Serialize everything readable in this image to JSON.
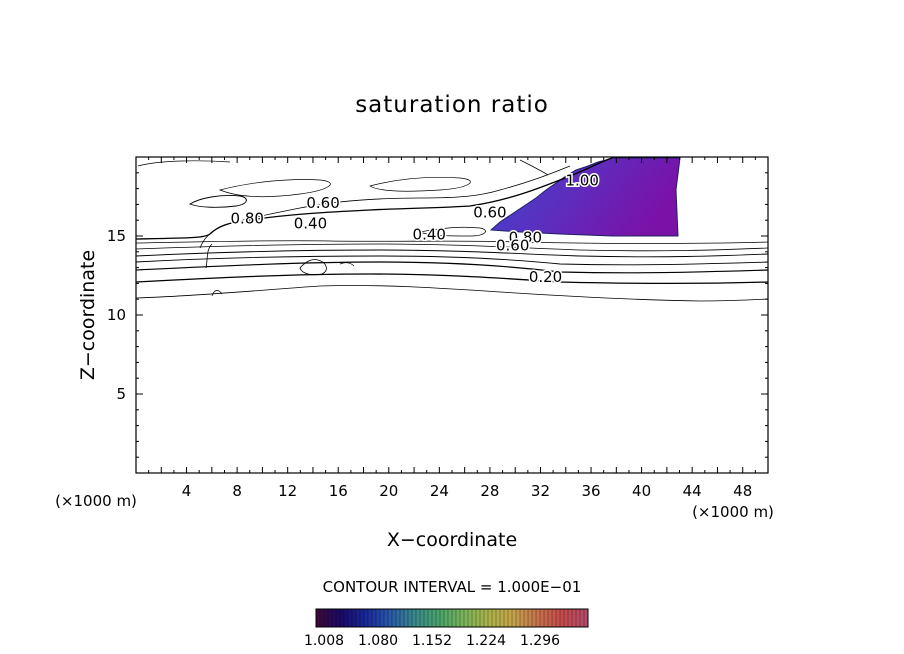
{
  "chart_data": {
    "type": "contour",
    "title": "saturation ratio",
    "xlabel": "X−coordinate",
    "ylabel": "Z−coordinate",
    "x_unit": "(×1000 m)",
    "x_unit_right": "(×1000 m)",
    "xlim": [
      0,
      50
    ],
    "ylim": [
      0,
      20
    ],
    "xticks": [
      4,
      8,
      12,
      16,
      20,
      24,
      28,
      32,
      36,
      40,
      44,
      48
    ],
    "yticks": [
      5,
      10,
      15
    ],
    "contour_labels": [
      {
        "text": "0.80",
        "x": 8.8,
        "y": 16.1
      },
      {
        "text": "0.60",
        "x": 14.8,
        "y": 17.1
      },
      {
        "text": "0.40",
        "x": 13.8,
        "y": 15.8
      },
      {
        "text": "0.40",
        "x": 23.2,
        "y": 15.1
      },
      {
        "text": "0.60",
        "x": 28.0,
        "y": 16.5
      },
      {
        "text": "0.80",
        "x": 30.8,
        "y": 14.9
      },
      {
        "text": "0.60",
        "x": 29.8,
        "y": 14.4
      },
      {
        "text": "0.20",
        "x": 32.4,
        "y": 12.4
      },
      {
        "text": "1.00",
        "x": 35.3,
        "y": 18.5
      }
    ],
    "contour_interval_text": "CONTOUR INTERVAL = 1.000E−01",
    "colorbar": {
      "tick_labels": [
        "1.008",
        "1.080",
        "1.152",
        "1.224",
        "1.296"
      ],
      "colors": [
        "#3a0a3a",
        "#1a0a6a",
        "#1a2a9a",
        "#2a5aaa",
        "#3a8a8a",
        "#4aa46a",
        "#7ab45a",
        "#aab44a",
        "#c4a44a",
        "#c4744a",
        "#c44a4a",
        "#b44a6a"
      ]
    },
    "shaded_region": {
      "description_value_range": "1.008-1.10",
      "colors": [
        "#4a3ac8",
        "#5a2ab4",
        "#6a1aa8"
      ]
    },
    "grid": false
  }
}
